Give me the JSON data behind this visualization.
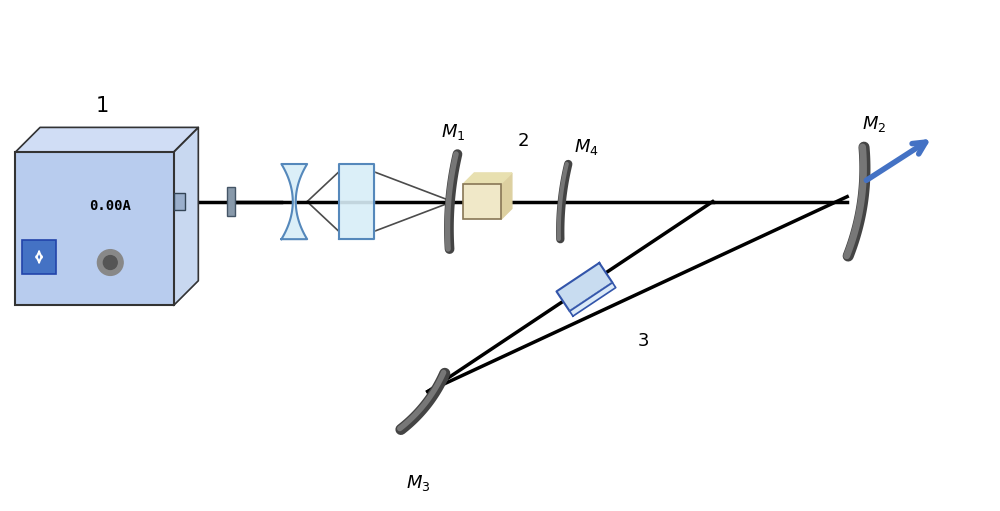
{
  "bg_color": "#ffffff",
  "beam_color": "#000000",
  "output_beam_color": "#4472C4",
  "mirror_dark": "#444444",
  "mirror_mid": "#777777",
  "mirror_light": "#aaaaaa",
  "device_face": "#b8ccee",
  "device_side": "#c8d8f0",
  "device_top": "#d0ddf5",
  "crystal_face": "#f0e8c8",
  "crystal_side": "#ddd0a0",
  "crystal_top": "#e8e0b0",
  "lens_fill": "#d8eef8",
  "lens_edge": "#5588bb",
  "etalon_fill": "#c8dcf0",
  "etalon_edge": "#3355aa",
  "btn_color": "#4472C4",
  "knob_color": "#888888",
  "knob_inner": "#555555",
  "port_color": "#9aafcc",
  "text_color": "#000000",
  "label_0A": "0.00A",
  "label_1": "1",
  "label_2": "2",
  "label_3": "3"
}
